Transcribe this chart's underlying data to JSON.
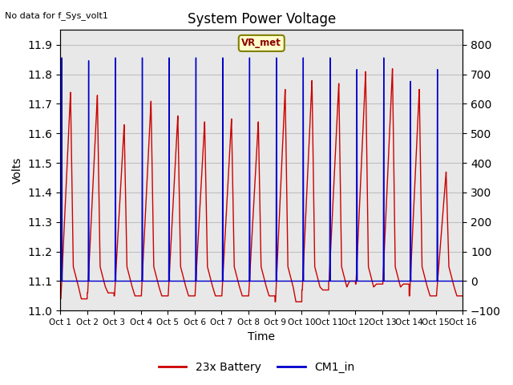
{
  "title": "System Power Voltage",
  "no_data_label": "No data for f_Sys_volt1",
  "xlabel": "Time",
  "ylabel": "Volts",
  "ylim_left": [
    11.0,
    11.95
  ],
  "ylim_right": [
    -100,
    850
  ],
  "yticks_left": [
    11.0,
    11.1,
    11.2,
    11.3,
    11.4,
    11.5,
    11.6,
    11.7,
    11.8,
    11.9
  ],
  "yticks_right": [
    -100,
    0,
    100,
    200,
    300,
    400,
    500,
    600,
    700,
    800
  ],
  "xtick_labels": [
    "Oct 1",
    "Oct 2",
    "Oct 3",
    "Oct 4",
    "Oct 5",
    "Oct 6",
    "Oct 7",
    "Oct 8",
    "Oct 9",
    "Oct 10",
    "Oct 11",
    "Oct 12",
    "Oct 13",
    "Oct 14",
    "Oct 15",
    "Oct 16"
  ],
  "plot_bg_color": "#e8e8e8",
  "line1_color": "#cc0000",
  "line2_color": "#0000cc",
  "line1_label": "23x Battery",
  "line2_label": "CM1_in",
  "vr_met_label": "VR_met",
  "grid_color": "#c0c0c0",
  "base_voltage": 11.1,
  "red_peaks": [
    11.74,
    11.73,
    11.63,
    11.71,
    11.66,
    11.64,
    11.65,
    11.64,
    11.75,
    11.78,
    11.77,
    11.81,
    11.82,
    11.75,
    11.47
  ],
  "blue_peaks": [
    11.86,
    11.85,
    11.86,
    11.86,
    11.86,
    11.86,
    11.86,
    11.86,
    11.86,
    11.86,
    11.86,
    11.82,
    11.86,
    11.78,
    11.82
  ],
  "min_reds": [
    11.04,
    11.06,
    11.05,
    11.05,
    11.05,
    11.05,
    11.05,
    11.05,
    11.03,
    11.07,
    11.1,
    11.09,
    11.09,
    11.05,
    11.05
  ]
}
